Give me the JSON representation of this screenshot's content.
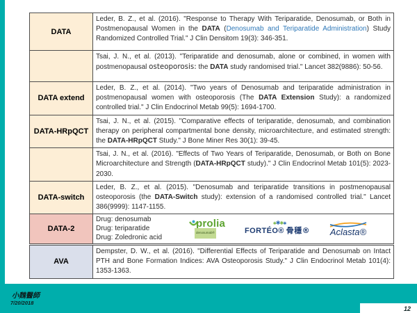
{
  "slide": {
    "signature": "小魏醫師",
    "date": "7/20/2018",
    "page_number": "12"
  },
  "colors": {
    "accent": "#00aeac",
    "link": "#2e78b8",
    "label_cream": "#fdeed6",
    "label_pink": "#f1c5bd",
    "label_blue": "#dadfeb",
    "prolia_green": "#5ca32f",
    "forteo_navy": "#1e3c72",
    "aclasta_navy": "#16356b"
  },
  "tables": {
    "main": {
      "rows": [
        {
          "label": "DATA",
          "label_bg": "#fdeed6",
          "segments": [
            {
              "t": "Leder, B. Z., et al. (2016). \"Response to Therapy With Teriparatide, Denosumab, or Both in Postmenopausal Women in the "
            },
            {
              "t": "DATA",
              "b": true
            },
            {
              "t": " ("
            },
            {
              "t": "Denosumab and Teriparatide Administration",
              "link": true
            },
            {
              "t": ") Study Randomized Controlled Trial.\" J Clin Densitom 19(3): 346-351."
            }
          ]
        },
        {
          "label": "",
          "label_bg": "#fdeed6",
          "segments": [
            {
              "t": "Tsai, J. N., et al. (2013). \"Teriparatide and denosumab, alone or combined, in women with postmenopausal "
            },
            {
              "t": "osteoporosis:",
              "alt": true
            },
            {
              "t": " the "
            },
            {
              "t": "DATA",
              "b": true
            },
            {
              "t": " study randomised trial.\" Lancet 382(9886): 50-56."
            }
          ]
        },
        {
          "label": "DATA extend",
          "label_bg": "#fdeed6",
          "segments": [
            {
              "t": "Leder, B. Z., et al. (2014). \"Two years of Denosumab and teriparatide administration in postmenopausal women with osteoporosis (The "
            },
            {
              "t": "DATA Extension",
              "b": true
            },
            {
              "t": " Study): a randomized controlled trial.\" J Clin Endocrinol Metab 99(5): 1694-1700."
            }
          ]
        },
        {
          "label": "DATA-HRpQCT",
          "label_bg": "#fdeed6",
          "segments": [
            {
              "t": "Tsai, J. N., et al. (2015). \"Comparative effects of teriparatide, denosumab, and combination therapy on peripheral compartmental bone density, microarchitecture, and estimated strength: the "
            },
            {
              "t": "DATA-HRpQCT",
              "b": true
            },
            {
              "t": " Study.\" J Bone Miner Res 30(1): 39-45."
            }
          ]
        },
        {
          "label": "",
          "label_bg": "#fdeed6",
          "segments": [
            {
              "t": "Tsai, J. N., et al. (2016). \"Effects of Two Years of Teriparatide, Denosumab, or Both on Bone Microarchitecture and Strength ("
            },
            {
              "t": "DATA-HRpQCT",
              "b": true
            },
            {
              "t": " study).\" J Clin Endocrinol Metab 101(5): 2023-2030."
            }
          ]
        },
        {
          "label": "DATA-switch",
          "label_bg": "#fdeed6",
          "segments": [
            {
              "t": "Leder, B. Z., et al. (2015). \"Denosumab and teriparatide transitions in postmenopausal osteoporosis (the "
            },
            {
              "t": "DATA-Switch",
              "b": true
            },
            {
              "t": " study): extension of a randomised controlled trial.\" Lancet 386(9999): 1147-1155."
            }
          ]
        },
        {
          "label": "DATA-2",
          "label_bg": "#f1c5bd",
          "lines": [
            "Drug: denosumab",
            "Drug: teriparatide",
            "Drug: Zoledronic acid"
          ],
          "has_logos": true
        }
      ]
    },
    "ava": {
      "rows": [
        {
          "label": "AVA",
          "label_bg": "#dadfeb",
          "segments": [
            {
              "t": "Dempster, D. W., et al. (2016). \"Differential Effects of Teriparatide and Denosumab on Intact PTH and Bone Formation Indices: AVA Osteoporosis Study.\" J Clin Endocrinol Metab 101(4): 1353-1363."
            }
          ]
        }
      ]
    }
  },
  "logos": {
    "prolia": {
      "name": "prolia",
      "sub": "denosumab®"
    },
    "forteo": {
      "name": "FORTÉO®",
      "cjk": "骨穩®"
    },
    "aclasta": {
      "name": "Aclasta®"
    }
  }
}
